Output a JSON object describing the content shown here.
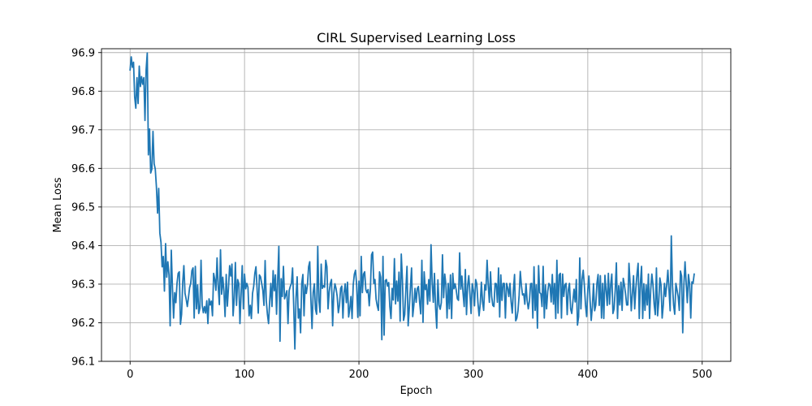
{
  "chart_data": {
    "type": "line",
    "title": "CIRL Supervised Learning Loss",
    "xlabel": "Epoch",
    "ylabel": "Mean Loss",
    "xlim": [
      -25,
      525
    ],
    "ylim": [
      96.1,
      96.91
    ],
    "xticks": [
      0,
      100,
      200,
      300,
      400,
      500
    ],
    "yticks": [
      96.1,
      96.2,
      96.3,
      96.4,
      96.5,
      96.6,
      96.7,
      96.8,
      96.9
    ],
    "grid": true,
    "series_color": "#1f77b4",
    "series": [
      {
        "x_start": 0,
        "x_step": 1,
        "values": [
          96.855,
          96.889,
          96.862,
          96.875,
          96.785,
          96.756,
          96.835,
          96.768,
          96.865,
          96.812,
          96.838,
          96.818,
          96.835,
          96.724,
          96.855,
          96.899,
          96.635,
          96.702,
          96.588,
          96.598,
          96.696,
          96.612,
          96.598,
          96.552,
          96.484,
          96.548,
          96.432,
          96.408,
          96.345,
          96.372,
          96.282,
          96.405,
          96.318,
          96.358,
          96.324,
          96.192,
          96.388,
          96.292,
          96.212,
          96.278,
          96.252,
          96.302,
          96.328,
          96.332,
          96.196,
          96.222,
          96.305,
          96.348,
          96.276,
          96.261,
          96.242,
          96.265,
          96.291,
          96.302,
          96.335,
          96.342,
          96.212,
          96.346,
          96.236,
          96.298,
          96.224,
          96.238,
          96.362,
          96.245,
          96.226,
          96.242,
          96.225,
          96.257,
          96.198,
          96.262,
          96.246,
          96.256,
          96.218,
          96.328,
          96.312,
          96.284,
          96.368,
          96.294,
          96.247,
          96.389,
          96.274,
          96.318,
          96.282,
          96.216,
          96.325,
          96.243,
          96.292,
          96.348,
          96.321,
          96.352,
          96.218,
          96.262,
          96.356,
          96.245,
          96.312,
          96.302,
          96.198,
          96.274,
          96.348,
          96.236,
          96.326,
          96.288,
          96.302,
          96.292,
          96.218,
          96.245,
          96.211,
          96.276,
          96.294,
          96.328,
          96.345,
          96.286,
          96.225,
          96.324,
          96.319,
          96.302,
          96.284,
          96.245,
          96.361,
          96.258,
          96.222,
          96.198,
          96.256,
          96.302,
          96.242,
          96.335,
          96.283,
          96.324,
          96.222,
          96.312,
          96.398,
          96.152,
          96.314,
          96.268,
          96.346,
          96.262,
          96.272,
          96.283,
          96.198,
          96.283,
          96.294,
          96.302,
          96.342,
          96.242,
          96.132,
          96.264,
          96.319,
          96.212,
          96.236,
          96.174,
          96.302,
          96.325,
          96.218,
          96.298,
          96.276,
          96.298,
          96.345,
          96.358,
          96.262,
          96.185,
          96.278,
          96.301,
          96.235,
          96.222,
          96.398,
          96.258,
          96.227,
          96.352,
          96.289,
          96.296,
          96.292,
          96.362,
          96.345,
          96.236,
          96.281,
          96.302,
          96.312,
          96.192,
          96.276,
          96.301,
          96.289,
          96.268,
          96.226,
          96.246,
          96.289,
          96.295,
          96.212,
          96.278,
          96.301,
          96.252,
          96.305,
          96.215,
          96.236,
          96.268,
          96.211,
          96.298,
          96.326,
          96.336,
          96.298,
          96.214,
          96.308,
          96.218,
          96.372,
          96.278,
          96.326,
          96.332,
          96.286,
          96.278,
          96.286,
          96.244,
          96.287,
          96.376,
          96.383,
          96.302,
          96.312,
          96.261,
          96.244,
          96.232,
          96.332,
          96.318,
          96.156,
          96.372,
          96.168,
          96.309,
          96.312,
          96.295,
          96.304,
          96.242,
          96.211,
          96.289,
          96.259,
          96.366,
          96.249,
          96.308,
          96.256,
          96.331,
          96.204,
          96.378,
          96.312,
          96.206,
          96.221,
          96.286,
          96.346,
          96.192,
          96.238,
          96.292,
          96.342,
          96.216,
          96.246,
          96.289,
          96.253,
          96.289,
          96.294,
          96.254,
          96.223,
          96.362,
          96.201,
          96.332,
          96.286,
          96.298,
          96.248,
          96.312,
          96.256,
          96.402,
          96.305,
          96.253,
          96.328,
          96.238,
          96.186,
          96.311,
          96.246,
          96.235,
          96.252,
          96.376,
          96.265,
          96.326,
          96.298,
          96.212,
          96.302,
          96.236,
          96.324,
          96.211,
          96.328,
          96.288,
          96.301,
          96.285,
          96.262,
          96.258,
          96.381,
          96.287,
          96.321,
          96.276,
          96.242,
          96.338,
          96.221,
          96.296,
          96.322,
          96.276,
          96.224,
          96.301,
          96.285,
          96.244,
          96.312,
          96.301,
          96.252,
          96.218,
          96.248,
          96.305,
          96.255,
          96.232,
          96.298,
          96.285,
          96.362,
          96.298,
          96.253,
          96.332,
          96.268,
          96.245,
          96.242,
          96.302,
          96.301,
          96.253,
          96.342,
          96.215,
          96.324,
          96.258,
          96.302,
          96.302,
          96.212,
          96.302,
          96.291,
          96.268,
          96.302,
          96.254,
          96.225,
          96.285,
          96.325,
          96.205,
          96.212,
          96.231,
          96.271,
          96.333,
          96.296,
          96.272,
          96.275,
          96.248,
          96.301,
          96.258,
          96.236,
          96.256,
          96.301,
          96.302,
          96.212,
          96.345,
          96.232,
          96.298,
          96.186,
          96.348,
          96.278,
          96.275,
          96.242,
          96.346,
          96.212,
          96.298,
          96.236,
          96.281,
          96.302,
          96.298,
          96.254,
          96.325,
          96.248,
          96.302,
          96.211,
          96.362,
          96.225,
          96.324,
          96.328,
          96.212,
          96.326,
          96.268,
          96.298,
          96.302,
          96.221,
          96.285,
          96.302,
          96.236,
          96.224,
          96.256,
          96.287,
          96.254,
          96.312,
          96.194,
          96.216,
          96.368,
          96.236,
          96.312,
          96.336,
          96.298,
          96.246,
          96.216,
          96.285,
          96.321,
          96.258,
          96.206,
          96.242,
          96.301,
          96.231,
          96.246,
          96.302,
          96.325,
          96.245,
          96.322,
          96.212,
          96.302,
          96.211,
          96.323,
          96.285,
          96.245,
          96.328,
          96.248,
          96.298,
          96.326,
          96.224,
          96.236,
          96.285,
          96.355,
          96.211,
          96.296,
          96.246,
          96.305,
          96.232,
          96.315,
          96.298,
          96.275,
          96.246,
          96.246,
          96.354,
          96.302,
          96.231,
          96.276,
          96.322,
          96.236,
          96.288,
          96.325,
          96.354,
          96.211,
          96.302,
          96.346,
          96.211,
          96.301,
          96.232,
          96.298,
          96.246,
          96.326,
          96.211,
          96.285,
          96.326,
          96.298,
          96.248,
          96.221,
          96.342,
          96.218,
          96.254,
          96.316,
          96.298,
          96.212,
          96.246,
          96.302,
          96.268,
          96.298,
          96.336,
          96.285,
          96.231,
          96.425,
          96.298,
          96.246,
          96.222,
          96.302,
          96.285,
          96.268,
          96.232,
          96.334,
          96.321,
          96.174,
          96.298,
          96.358,
          96.302,
          96.252,
          96.325,
          96.301,
          96.212,
          96.306,
          96.302,
          96.326
        ]
      }
    ]
  }
}
